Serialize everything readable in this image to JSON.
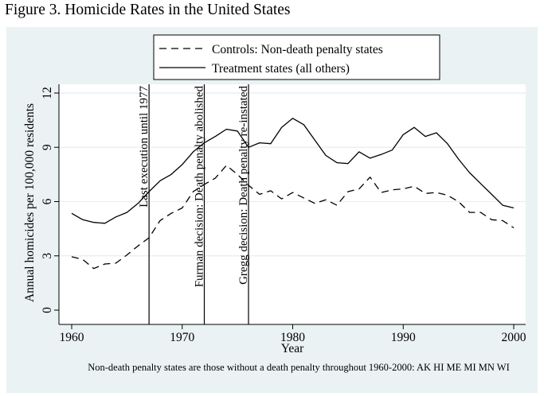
{
  "figure_title": "Figure 3. Homicide Rates in the United States",
  "chart_data": {
    "type": "line",
    "title": "",
    "xlabel": "Year",
    "ylabel": "Annual homicides per 100,000 residents",
    "xlim": [
      1960,
      2000
    ],
    "ylim": [
      0,
      12
    ],
    "xticks": [
      1960,
      1970,
      1980,
      1990,
      2000
    ],
    "yticks": [
      0,
      3,
      6,
      9,
      12
    ],
    "grid": "horizontal",
    "legend_position": "top-center",
    "x": [
      1960,
      1961,
      1962,
      1963,
      1964,
      1965,
      1966,
      1967,
      1968,
      1969,
      1970,
      1971,
      1972,
      1973,
      1974,
      1975,
      1976,
      1977,
      1978,
      1979,
      1980,
      1981,
      1982,
      1983,
      1984,
      1985,
      1986,
      1987,
      1988,
      1989,
      1990,
      1991,
      1992,
      1993,
      1994,
      1995,
      1996,
      1997,
      1998,
      1999,
      2000
    ],
    "series": [
      {
        "name": "Controls: Non-death penalty states",
        "style": "dashed",
        "values": [
          2.95,
          2.8,
          2.3,
          2.55,
          2.6,
          3.05,
          3.55,
          4.0,
          4.95,
          5.35,
          5.65,
          6.55,
          6.95,
          7.3,
          8.0,
          7.5,
          6.9,
          6.4,
          6.6,
          6.15,
          6.5,
          6.2,
          5.9,
          6.1,
          5.8,
          6.55,
          6.7,
          7.35,
          6.5,
          6.65,
          6.7,
          6.85,
          6.45,
          6.5,
          6.35,
          6.0,
          5.4,
          5.4,
          5.0,
          4.95,
          4.55
        ]
      },
      {
        "name": "Treatment states (all others)",
        "style": "solid",
        "values": [
          5.35,
          5.0,
          4.85,
          4.8,
          5.15,
          5.4,
          5.9,
          6.55,
          7.15,
          7.5,
          8.05,
          8.75,
          9.25,
          9.6,
          10.0,
          9.9,
          9.0,
          9.25,
          9.2,
          10.1,
          10.6,
          10.25,
          9.4,
          8.55,
          8.15,
          8.1,
          8.75,
          8.4,
          8.6,
          8.85,
          9.7,
          10.1,
          9.6,
          9.8,
          9.2,
          8.35,
          7.6,
          7.0,
          6.4,
          5.8,
          5.65
        ]
      }
    ],
    "events": [
      {
        "x": 1967,
        "label": "Last execution until 1977"
      },
      {
        "x": 1972,
        "label": "Furman decision: Death penalty abolished"
      },
      {
        "x": 1976,
        "label": "Gregg decision: Death penalty re-instated"
      }
    ],
    "footnote": "Non-death penalty states are those without a death penalty throughout 1960-2000: AK HI ME MI MN WI"
  }
}
